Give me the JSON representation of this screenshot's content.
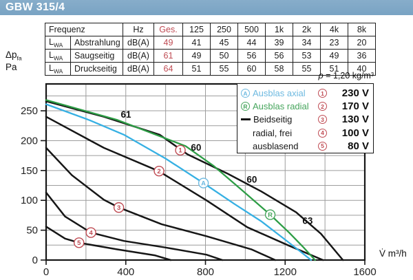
{
  "title_bar": {
    "title": "GBW 315/4",
    "bg_color": "#7da7c7"
  },
  "table": {
    "header": {
      "col_frequenz": "Frequenz",
      "col_hz": "Hz",
      "col_ges": "Ges.",
      "freqs": [
        "125",
        "250",
        "500",
        "1k",
        "2k",
        "4k",
        "8k"
      ]
    },
    "rows": [
      {
        "sym": "L",
        "sub": "WA",
        "name": "Abstrahlung",
        "unit": "dB(A)",
        "ges": "49",
        "values": [
          "41",
          "45",
          "44",
          "39",
          "34",
          "23",
          "20"
        ]
      },
      {
        "sym": "L",
        "sub": "WA",
        "name": "Saugseitig",
        "unit": "dB(A)",
        "ges": "61",
        "values": [
          "49",
          "50",
          "56",
          "56",
          "53",
          "49",
          "36"
        ]
      },
      {
        "sym": "L",
        "sub": "WA",
        "name": "Druckseitig",
        "unit": "dB(A)",
        "ges": "64",
        "values": [
          "51",
          "55",
          "60",
          "58",
          "55",
          "51",
          "40"
        ]
      }
    ]
  },
  "axis": {
    "y_title_main": "Δp",
    "y_title_sub": "fa",
    "y_title_unit": "Pa",
    "x_title": "V̇ m³/h",
    "rho_symbol": "ρ",
    "rho_text": "= 1,20 kg/m³"
  },
  "legend": {
    "items": [
      {
        "marker": "A",
        "label": "Ausblas axial",
        "color": "#6db9e0"
      },
      {
        "marker": "R",
        "label": "Ausblas radial",
        "color": "#46a55c"
      },
      {
        "marker": "line",
        "label": "Beidseitig",
        "label2": "radial, frei",
        "label3": "ausblasend",
        "color": "#141414"
      }
    ],
    "voltages": [
      {
        "num": "1",
        "value": "230 V"
      },
      {
        "num": "2",
        "value": "170 V"
      },
      {
        "num": "3",
        "value": "130 V"
      },
      {
        "num": "4",
        "value": "100 V"
      },
      {
        "num": "5",
        "value": "80 V"
      }
    ]
  },
  "chart_data": {
    "type": "line",
    "title": "Fan characteristic curves GBW 315/4",
    "xlabel": "V̇ m³/h",
    "ylabel": "Δp fa Pa",
    "xlim": [
      0,
      1600
    ],
    "ylim": [
      0,
      295
    ],
    "x_ticks": [
      0,
      400,
      800,
      1200,
      1600
    ],
    "y_ticks": [
      0,
      50,
      100,
      150,
      200,
      250
    ],
    "x_grid_step": 200,
    "y_grid_step": 25,
    "grid": true,
    "legend_position": "top-right",
    "series": [
      {
        "id": "beidseitig-230v",
        "name": "1 · 230 V · Beidseitig radial, frei ausblasend",
        "color": "#161616",
        "width": 2.5,
        "points": [
          [
            0,
            266
          ],
          [
            290,
            240
          ],
          [
            570,
            210
          ],
          [
            710,
            177
          ],
          [
            910,
            145
          ],
          [
            1080,
            115
          ],
          [
            1255,
            80
          ],
          [
            1380,
            44
          ],
          [
            1490,
            0
          ]
        ]
      },
      {
        "id": "beidseitig-170v",
        "name": "2 · 170 V · Beidseitig radial, frei ausblasend",
        "color": "#161616",
        "width": 2.5,
        "points": [
          [
            0,
            240
          ],
          [
            290,
            188
          ],
          [
            565,
            149
          ],
          [
            805,
            100
          ],
          [
            1010,
            55
          ],
          [
            1220,
            24
          ],
          [
            1390,
            0
          ]
        ]
      },
      {
        "id": "beidseitig-130v",
        "name": "3 · 130 V · Beidseitig radial, frei ausblasend",
        "color": "#161616",
        "width": 2.5,
        "points": [
          [
            0,
            188
          ],
          [
            130,
            142
          ],
          [
            290,
            101
          ],
          [
            365,
            88
          ],
          [
            580,
            60
          ],
          [
            805,
            40
          ],
          [
            1030,
            18
          ],
          [
            1150,
            0
          ]
        ]
      },
      {
        "id": "beidseitig-100v",
        "name": "4 · 100 V · Beidseitig radial, frei ausblasend",
        "color": "#161616",
        "width": 2.5,
        "points": [
          [
            0,
            113
          ],
          [
            95,
            73
          ],
          [
            225,
            46
          ],
          [
            390,
            32
          ],
          [
            600,
            21
          ],
          [
            805,
            9
          ],
          [
            885,
            0
          ]
        ]
      },
      {
        "id": "beidseitig-80v",
        "name": "5 · 80 V · Beidseitig radial, frei ausblasend",
        "color": "#161616",
        "width": 2.5,
        "points": [
          [
            0,
            56
          ],
          [
            95,
            36
          ],
          [
            165,
            29
          ],
          [
            355,
            18
          ],
          [
            545,
            8
          ],
          [
            625,
            0
          ]
        ]
      },
      {
        "id": "ausblas-axial",
        "name": "A · Ausblas axial (230 V)",
        "color": "#36b0e3",
        "width": 2.3,
        "points": [
          [
            0,
            261
          ],
          [
            220,
            234
          ],
          [
            390,
            210
          ],
          [
            600,
            170
          ],
          [
            790,
            129
          ],
          [
            945,
            94
          ],
          [
            1080,
            65
          ],
          [
            1185,
            38
          ],
          [
            1270,
            16
          ],
          [
            1330,
            0
          ]
        ]
      },
      {
        "id": "ausblas-radial",
        "name": "R · Ausblas radial (230 V)",
        "color": "#2d9d45",
        "width": 2.3,
        "points": [
          [
            0,
            268
          ],
          [
            355,
            235
          ],
          [
            700,
            191
          ],
          [
            840,
            158
          ],
          [
            980,
            118
          ],
          [
            1125,
            76
          ],
          [
            1220,
            46
          ],
          [
            1290,
            22
          ],
          [
            1350,
            0
          ]
        ]
      }
    ],
    "markers": [
      {
        "label": "1",
        "x": 674,
        "y": 184,
        "color": "#bf4a52"
      },
      {
        "label": "2",
        "x": 567,
        "y": 149,
        "color": "#bf4a52"
      },
      {
        "label": "3",
        "x": 365,
        "y": 88,
        "color": "#bf4a52"
      },
      {
        "label": "4",
        "x": 225,
        "y": 46,
        "color": "#bf4a52"
      },
      {
        "label": "5",
        "x": 165,
        "y": 29,
        "color": "#bf4a52"
      },
      {
        "label": "A",
        "x": 790,
        "y": 129,
        "color": "#6db9e0"
      },
      {
        "label": "R",
        "x": 1125,
        "y": 76,
        "color": "#46a55c"
      }
    ],
    "curve_labels": [
      {
        "text": "61",
        "x": 401,
        "y": 243
      },
      {
        "text": "60",
        "x": 753,
        "y": 188
      },
      {
        "text": "60",
        "x": 1033,
        "y": 134
      },
      {
        "text": "63",
        "x": 1313,
        "y": 65
      }
    ]
  }
}
